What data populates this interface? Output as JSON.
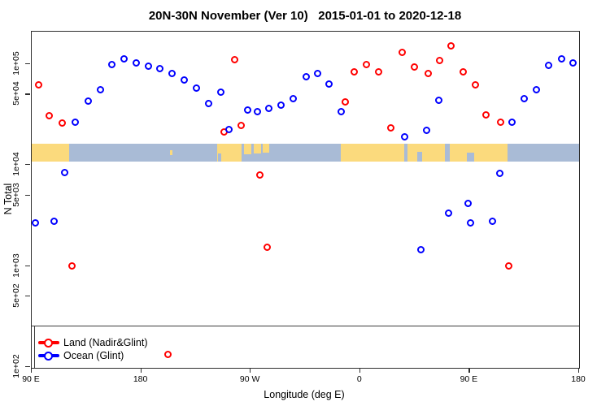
{
  "title": "20N-30N November (Ver 10)   2015-01-01 to 2020-12-18",
  "colors": {
    "land_series": "#ff0000",
    "ocean_series": "#0000ff",
    "map_ocean": "#a9bbd6",
    "map_land": "#fbda7d",
    "axis": "#2e2e2e"
  },
  "legend": {
    "items": [
      {
        "label": "Land (Nadir&Glint)",
        "color": "#ff0000"
      },
      {
        "label": "Ocean (Glint)",
        "color": "#0000ff"
      }
    ]
  },
  "chart_data": {
    "type": "scatter",
    "title": "20N-30N November (Ver 10)   2015-01-01 to 2020-12-18",
    "xlabel": "Longitude (deg E)",
    "ylabel": "N Total",
    "x_axis": {
      "note": "axis spans 450 degrees starting at 90E and wrapping past 180 twice",
      "range_deg": [
        0,
        450
      ],
      "tick_positions_deg": [
        0,
        90,
        180,
        270,
        360,
        450
      ],
      "tick_labels": [
        "90 E",
        "180",
        "90 W",
        "0",
        "90 E",
        "180"
      ]
    },
    "y_axis": {
      "scale": "log10",
      "range": [
        98,
        210000
      ],
      "tick_values": [
        100000,
        50000,
        10000,
        5000,
        1000,
        500,
        100
      ],
      "tick_labels": [
        "1e+05",
        "5e+04",
        "1e+04",
        "5e+03",
        "1e+03",
        "5e+02",
        "1e+02"
      ]
    },
    "grid": false,
    "legend_position": "bottom-left",
    "series": [
      {
        "name": "Land (Nadir&Glint)",
        "color": "#ff0000",
        "points": [
          [
            5.4,
            61800
          ],
          [
            14.1,
            31100
          ],
          [
            25.4,
            25900
          ],
          [
            32.8,
            993
          ],
          [
            111.8,
            132
          ],
          [
            158.0,
            21100
          ],
          [
            166.7,
            111700
          ],
          [
            172.1,
            24500
          ],
          [
            187.5,
            8050
          ],
          [
            193.5,
            1520
          ],
          [
            257.8,
            41900
          ],
          [
            265.2,
            83100
          ],
          [
            275.2,
            98200
          ],
          [
            285.3,
            83100
          ],
          [
            295.3,
            23500
          ],
          [
            304.7,
            132000
          ],
          [
            314.7,
            92900
          ],
          [
            326.1,
            81500
          ],
          [
            335.5,
            107700
          ],
          [
            344.9,
            153100
          ],
          [
            354.9,
            83100
          ],
          [
            364.9,
            61800
          ],
          [
            373.7,
            31700
          ],
          [
            385.7,
            26400
          ],
          [
            392.4,
            993
          ]
        ]
      },
      {
        "name": "Ocean (Glint)",
        "color": "#0000ff",
        "points": [
          [
            2.7,
            2650
          ],
          [
            18.7,
            2750
          ],
          [
            26.8,
            8510
          ],
          [
            35.5,
            26800
          ],
          [
            46.2,
            43400
          ],
          [
            56.3,
            56300
          ],
          [
            65.6,
            98200
          ],
          [
            75.7,
            113800
          ],
          [
            85.7,
            101900
          ],
          [
            95.8,
            94600
          ],
          [
            105.1,
            89500
          ],
          [
            115.2,
            81500
          ],
          [
            125.2,
            70300
          ],
          [
            135.3,
            57400
          ],
          [
            145.3,
            40400
          ],
          [
            155.4,
            52300
          ],
          [
            162.1,
            22700
          ],
          [
            177.5,
            34800
          ],
          [
            185.5,
            34100
          ],
          [
            194.9,
            36700
          ],
          [
            204.9,
            39600
          ],
          [
            215.0,
            45900
          ],
          [
            225.7,
            75700
          ],
          [
            235.0,
            81500
          ],
          [
            244.4,
            63000
          ],
          [
            254.5,
            34100
          ],
          [
            306.7,
            19200
          ],
          [
            320.1,
            1440
          ],
          [
            324.8,
            21900
          ],
          [
            334.8,
            44200
          ],
          [
            342.9,
            3370
          ],
          [
            358.9,
            4210
          ],
          [
            360.9,
            2650
          ],
          [
            379.0,
            2800
          ],
          [
            385.0,
            8350
          ],
          [
            395.1,
            26400
          ],
          [
            405.1,
            45100
          ],
          [
            415.2,
            56300
          ],
          [
            425.2,
            96400
          ],
          [
            435.3,
            113800
          ],
          [
            445.3,
            101900
          ]
        ]
      }
    ],
    "map_strip": {
      "value_band": [
        10800,
        16300
      ],
      "land_segments_deg": [
        [
          0,
          31,
          "full",
          1
        ],
        [
          113.8,
          115.4,
          "mid",
          0.3
        ],
        [
          152.5,
          172.5,
          "full",
          1
        ],
        [
          174.5,
          180.5,
          "top",
          0.6
        ],
        [
          182.5,
          188.5,
          "top",
          0.55
        ],
        [
          190,
          195.2,
          "top",
          0.5
        ],
        [
          254,
          306,
          "full",
          1
        ],
        [
          309,
          340,
          "full",
          1
        ],
        [
          343.5,
          391,
          "full",
          1
        ]
      ],
      "water_notches_deg": [
        [
          153,
          155.5,
          "bottom",
          0.45
        ],
        [
          317,
          321,
          "bottom",
          0.55
        ],
        [
          358,
          364,
          "bottom",
          0.5
        ]
      ]
    }
  }
}
